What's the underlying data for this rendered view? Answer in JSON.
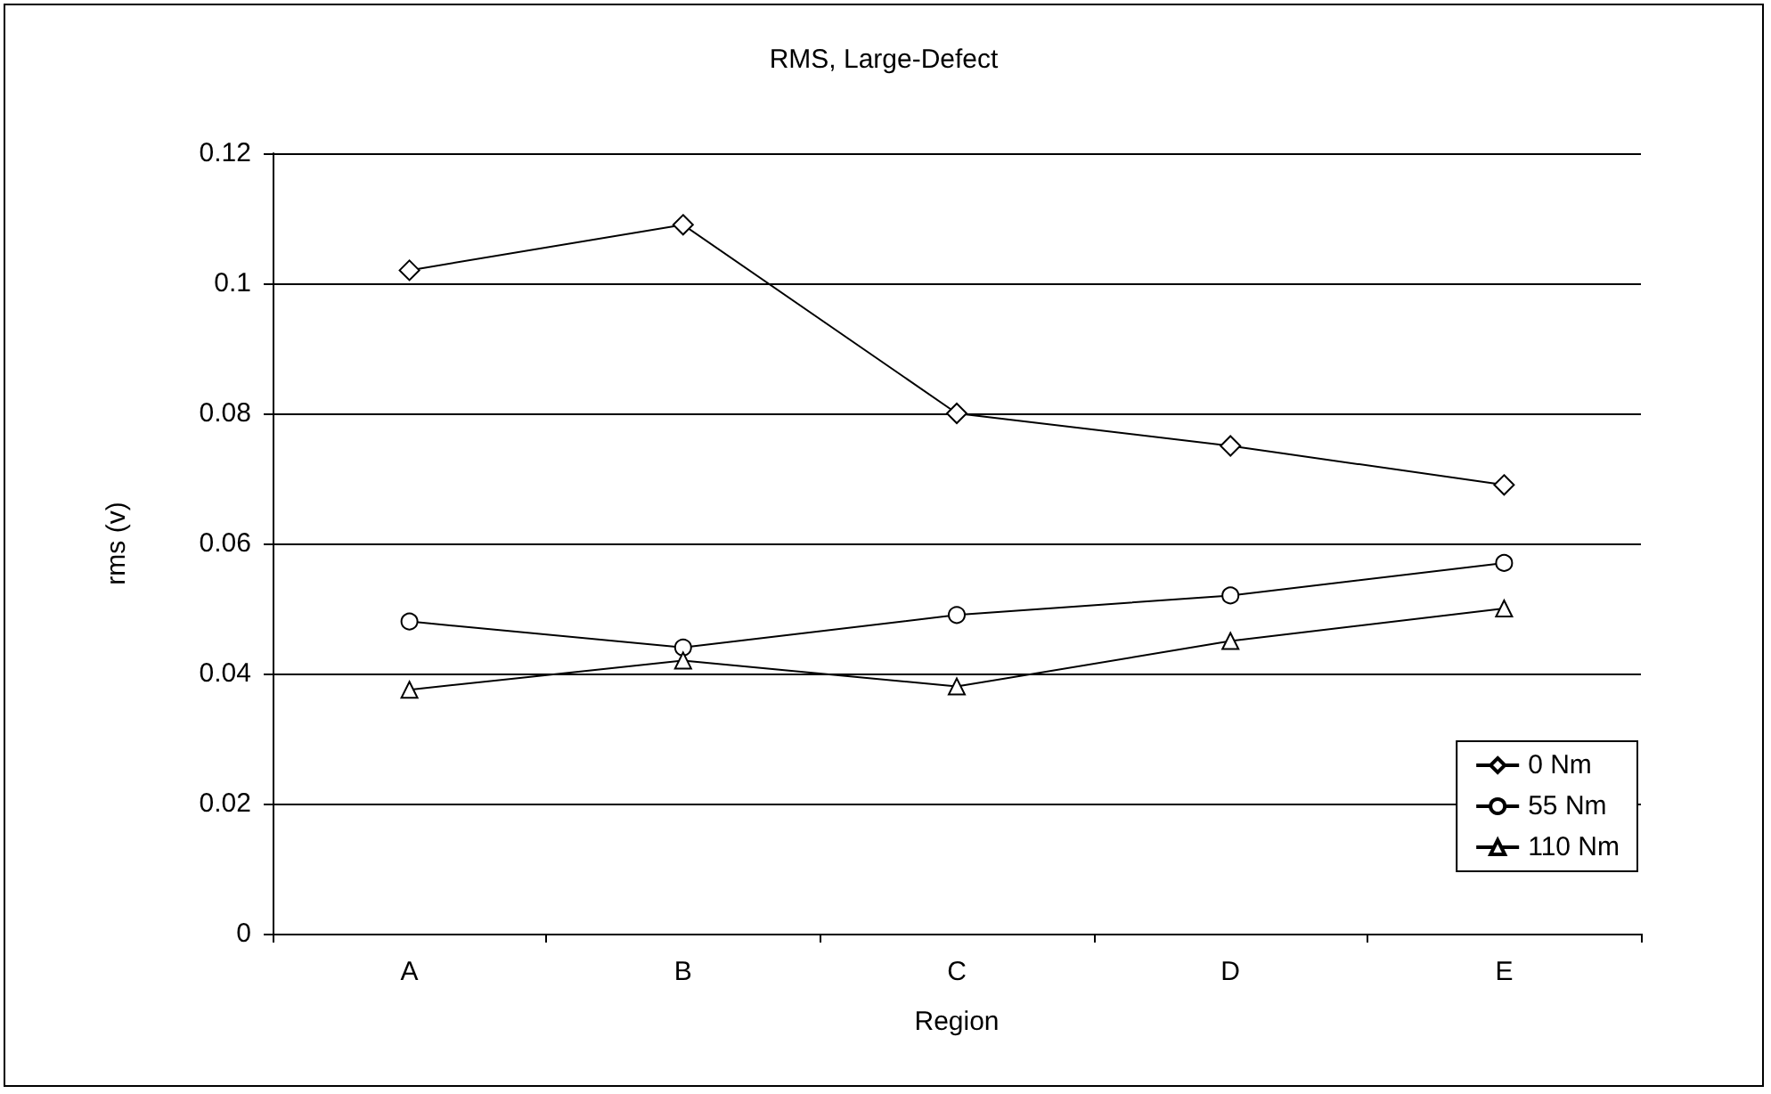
{
  "chart_data": {
    "type": "line",
    "title": "RMS, Large-Defect",
    "xlabel": "Region",
    "ylabel": "rms (v)",
    "categories": [
      "A",
      "B",
      "C",
      "D",
      "E"
    ],
    "series": [
      {
        "name": "0 Nm",
        "color": "#000000",
        "marker": "diamond",
        "values": [
          0.102,
          0.109,
          0.08,
          0.075,
          0.069
        ]
      },
      {
        "name": "55 Nm",
        "color": "#000000",
        "marker": "circle",
        "values": [
          0.048,
          0.044,
          0.049,
          0.052,
          0.057
        ]
      },
      {
        "name": "110 Nm",
        "color": "#000000",
        "marker": "triangle",
        "values": [
          0.0375,
          0.042,
          0.038,
          0.045,
          0.05
        ]
      }
    ],
    "ylim": [
      0,
      0.12
    ],
    "yticks": [
      0,
      0.02,
      0.04,
      0.06,
      0.08,
      0.1,
      0.12
    ],
    "grid": "y",
    "legend": "bottom right"
  }
}
